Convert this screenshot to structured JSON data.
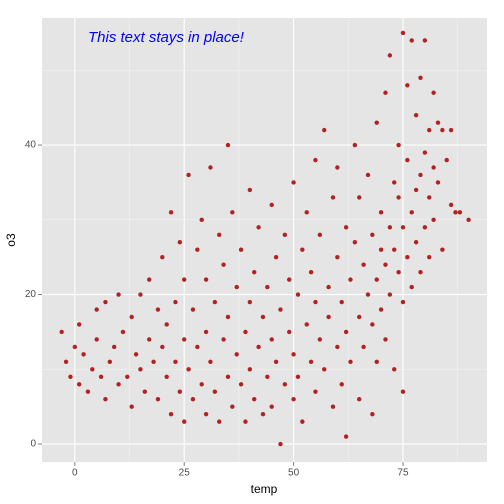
{
  "chart_data": {
    "type": "scatter",
    "x_label": "temp",
    "y_label": "o3",
    "annotation": "This text stays in place!",
    "annotation_color": "#0000ff",
    "color": "#b22222",
    "xlim": [
      -7.5,
      94.2
    ],
    "ylim": [
      -2.4,
      57
    ],
    "xticks": [
      0,
      25,
      50,
      75
    ],
    "yticks": [
      0,
      20,
      40
    ],
    "xminor": [
      12.5,
      37.5,
      62.5,
      87.5
    ],
    "yminor": [
      10,
      30,
      50
    ],
    "grid": true,
    "x": [
      -3,
      -2,
      -1,
      0,
      1,
      1,
      2,
      3,
      4,
      5,
      5,
      6,
      7,
      7,
      8,
      9,
      10,
      10,
      11,
      12,
      13,
      13,
      14,
      15,
      15,
      16,
      17,
      17,
      18,
      19,
      19,
      20,
      20,
      21,
      21,
      22,
      22,
      23,
      23,
      24,
      24,
      25,
      25,
      25,
      26,
      26,
      27,
      27,
      28,
      28,
      29,
      29,
      30,
      30,
      30,
      31,
      31,
      32,
      32,
      33,
      33,
      34,
      34,
      35,
      35,
      35,
      36,
      36,
      37,
      37,
      38,
      38,
      39,
      39,
      40,
      40,
      40,
      41,
      41,
      42,
      42,
      43,
      43,
      44,
      44,
      45,
      45,
      45,
      46,
      46,
      47,
      47,
      48,
      48,
      49,
      49,
      50,
      50,
      50,
      51,
      51,
      52,
      52,
      53,
      53,
      54,
      54,
      55,
      55,
      55,
      56,
      56,
      57,
      57,
      58,
      58,
      59,
      59,
      60,
      60,
      60,
      61,
      61,
      62,
      62,
      62,
      63,
      63,
      64,
      64,
      65,
      65,
      65,
      66,
      66,
      67,
      67,
      68,
      68,
      68,
      69,
      69,
      69,
      70,
      70,
      70,
      71,
      71,
      71,
      72,
      72,
      72,
      73,
      73,
      73,
      74,
      74,
      74,
      75,
      75,
      75,
      75,
      76,
      76,
      76,
      77,
      77,
      77,
      78,
      78,
      78,
      79,
      79,
      79,
      80,
      80,
      80,
      81,
      81,
      81,
      82,
      82,
      82,
      83,
      83,
      84,
      84,
      85,
      86,
      86,
      87,
      88,
      90
    ],
    "values": [
      15,
      11,
      9,
      13,
      16,
      8,
      12,
      7,
      10,
      14,
      18,
      9,
      19,
      6,
      11,
      13,
      20,
      8,
      15,
      9,
      17,
      5,
      12,
      20,
      10,
      7,
      14,
      22,
      11,
      18,
      6,
      25,
      13,
      9,
      16,
      31,
      4,
      19,
      11,
      27,
      7,
      14,
      22,
      3,
      36,
      10,
      18,
      6,
      26,
      13,
      30,
      8,
      15,
      4,
      22,
      37,
      11,
      19,
      7,
      28,
      3,
      14,
      24,
      40,
      9,
      17,
      5,
      31,
      12,
      21,
      8,
      26,
      15,
      3,
      19,
      10,
      34,
      6,
      23,
      13,
      29,
      4,
      17,
      9,
      21,
      14,
      32,
      5,
      11,
      25,
      0,
      18,
      8,
      28,
      15,
      22,
      6,
      12,
      35,
      20,
      9,
      26,
      3,
      16,
      31,
      11,
      23,
      7,
      19,
      38,
      14,
      28,
      42,
      10,
      21,
      17,
      5,
      33,
      13,
      25,
      37,
      8,
      19,
      1,
      29,
      15,
      22,
      11,
      27,
      40,
      17,
      6,
      33,
      24,
      13,
      20,
      36,
      4,
      28,
      16,
      43,
      22,
      11,
      26,
      31,
      18,
      47,
      14,
      24,
      52,
      29,
      20,
      35,
      10,
      26,
      23,
      33,
      40,
      55,
      19,
      29,
      7,
      25,
      38,
      48,
      21,
      31,
      54,
      27,
      44,
      34,
      49,
      23,
      36,
      29,
      39,
      54,
      25,
      33,
      42,
      47,
      37,
      30,
      43,
      35,
      26,
      42,
      38,
      32,
      42,
      31,
      31,
      30
    ]
  }
}
